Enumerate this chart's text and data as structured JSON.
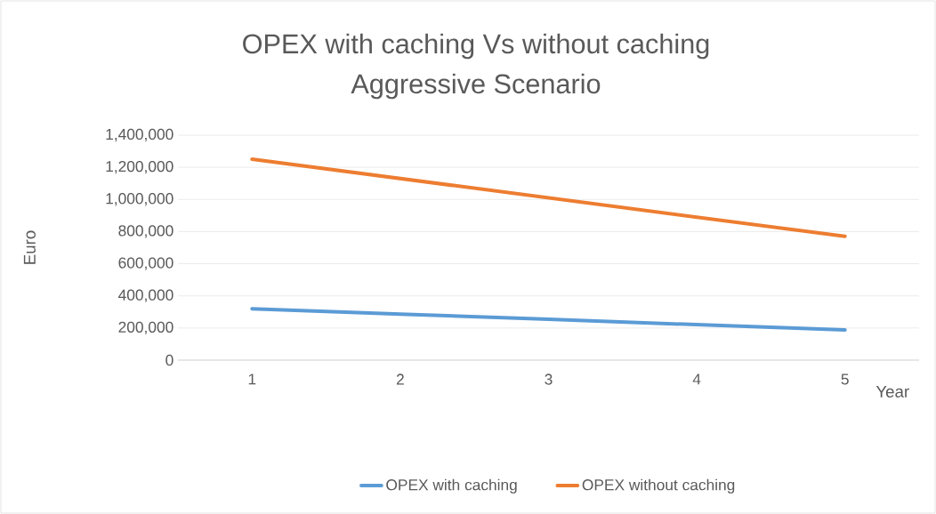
{
  "chart_data": {
    "type": "line",
    "title": "OPEX with caching Vs without caching",
    "subtitle": "Aggressive Scenario",
    "xlabel": "Year",
    "ylabel": "Euro",
    "categories": [
      "1",
      "2",
      "3",
      "4",
      "5"
    ],
    "series": [
      {
        "name": "OPEX with caching",
        "color": "#5b9bd5",
        "values": [
          320000,
          287000,
          254000,
          221000,
          188000
        ]
      },
      {
        "name": "OPEX without caching",
        "color": "#ed7d31",
        "values": [
          1250000,
          1130000,
          1010000,
          890000,
          770000
        ]
      }
    ],
    "ylim": [
      0,
      1400000
    ],
    "yticks": [
      {
        "value": 0,
        "label": "0"
      },
      {
        "value": 200000,
        "label": "200,000"
      },
      {
        "value": 400000,
        "label": "400,000"
      },
      {
        "value": 600000,
        "label": "600,000"
      },
      {
        "value": 800000,
        "label": "800,000"
      },
      {
        "value": 1000000,
        "label": "1,000,000"
      },
      {
        "value": 1200000,
        "label": "1,200,000"
      },
      {
        "value": 1400000,
        "label": "1,400,000"
      }
    ],
    "grid": "y",
    "legend": "bottom",
    "marker": "none",
    "line_style": "solid"
  }
}
